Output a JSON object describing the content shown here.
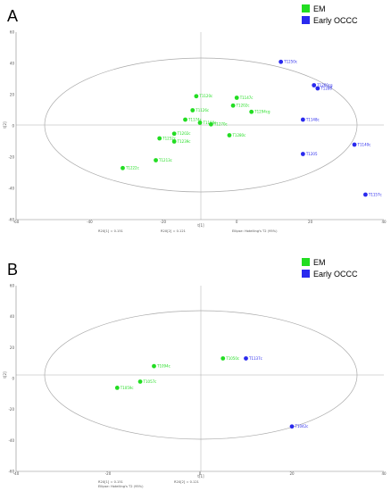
{
  "chart_data": [
    {
      "type": "scatter",
      "panel_label": "A",
      "legend": [
        {
          "label": "EM",
          "color": "#22dd22"
        },
        {
          "label": "Early OCCC",
          "color": "#2a2aee"
        }
      ],
      "xlabel": "t[1]",
      "ylabel": "t[2]",
      "xlim": [
        -60,
        40
      ],
      "ylim": [
        -60,
        60
      ],
      "xticks": [
        -60,
        -40,
        -20,
        0,
        20,
        40
      ],
      "yticks": [
        -60,
        -40,
        -20,
        0,
        20,
        40,
        60
      ],
      "grid": false,
      "footer": [
        "R2X[1] = 0.151",
        "R2X[2] = 0.121",
        "Ellipse: Hotelling's T2 (95%)"
      ],
      "points": [
        {
          "label": "T1250c",
          "x": 12,
          "y": 41,
          "group": "Early OCCC"
        },
        {
          "label": "T1260cg",
          "x": 21,
          "y": 26,
          "group": "Early OCCC"
        },
        {
          "label": "T1286",
          "x": 22,
          "y": 24,
          "group": "Early OCCC"
        },
        {
          "label": "T1148c",
          "x": 18,
          "y": 4,
          "group": "Early OCCC"
        },
        {
          "label": "T1205",
          "x": 18,
          "y": -18,
          "group": "Early OCCC"
        },
        {
          "label": "T1140c",
          "x": 32,
          "y": -12,
          "group": "Early OCCC"
        },
        {
          "label": "T1157c",
          "x": 35,
          "y": -44,
          "group": "Early OCCC"
        },
        {
          "label": "T1120c",
          "x": -11,
          "y": 19,
          "group": "EM"
        },
        {
          "label": "T1147c",
          "x": 0,
          "y": 18,
          "group": "EM"
        },
        {
          "label": "T1202c",
          "x": -1,
          "y": 13,
          "group": "EM"
        },
        {
          "label": "T1294cg",
          "x": 4,
          "y": 9,
          "group": "EM"
        },
        {
          "label": "T1126c",
          "x": -12,
          "y": 10,
          "group": "EM"
        },
        {
          "label": "T1174c",
          "x": -14,
          "y": 4,
          "group": "EM"
        },
        {
          "label": "T1188c",
          "x": -10,
          "y": 2,
          "group": "EM"
        },
        {
          "label": "T1270c",
          "x": -7,
          "y": 1,
          "group": "EM"
        },
        {
          "label": "T1202c",
          "x": -17,
          "y": -5,
          "group": "EM"
        },
        {
          "label": "T1280c",
          "x": -2,
          "y": -6,
          "group": "EM"
        },
        {
          "label": "T1252c",
          "x": -21,
          "y": -8,
          "group": "EM"
        },
        {
          "label": "T1239c",
          "x": -17,
          "y": -10,
          "group": "EM"
        },
        {
          "label": "T1213c",
          "x": -22,
          "y": -22,
          "group": "EM"
        },
        {
          "label": "T1222c",
          "x": -31,
          "y": -27,
          "group": "EM"
        }
      ]
    },
    {
      "type": "scatter",
      "panel_label": "B",
      "legend": [
        {
          "label": "EM",
          "color": "#22dd22"
        },
        {
          "label": "Early OCCC",
          "color": "#2a2aee"
        }
      ],
      "xlabel": "t[1]",
      "ylabel": "t[2]",
      "xlim": [
        -40,
        40
      ],
      "ylim": [
        -60,
        60
      ],
      "xticks": [
        -40,
        -20,
        0,
        20,
        40
      ],
      "yticks": [
        -60,
        -40,
        -20,
        0,
        20,
        40,
        60
      ],
      "grid": false,
      "footer": [
        "R2X[1] = 0.151",
        "R2X[2] = 0.121",
        "Ellipse: Hotelling's T2 (95%)"
      ],
      "points": [
        {
          "label": "T1050c",
          "x": 5,
          "y": 13,
          "group": "EM"
        },
        {
          "label": "T1094c",
          "x": -10,
          "y": 8,
          "group": "EM"
        },
        {
          "label": "T1057c",
          "x": -13,
          "y": -2,
          "group": "EM"
        },
        {
          "label": "T1059c",
          "x": -18,
          "y": -6,
          "group": "EM"
        },
        {
          "label": "T1137c",
          "x": 10,
          "y": 13,
          "group": "Early OCCC"
        },
        {
          "label": "T1042c",
          "x": 20,
          "y": -31,
          "group": "Early OCCC"
        }
      ]
    }
  ]
}
